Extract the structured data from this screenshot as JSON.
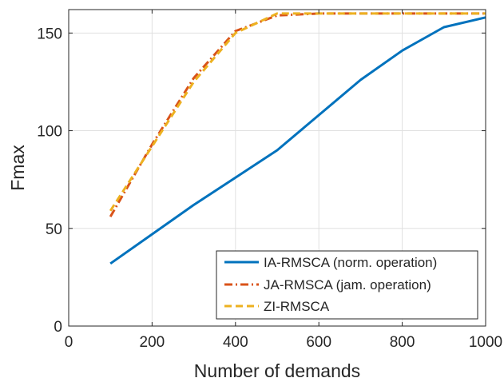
{
  "chart_data": {
    "type": "line",
    "xlabel": "Number of demands",
    "ylabel": "Fmax",
    "xlim": [
      0,
      1000
    ],
    "ylim": [
      0,
      162
    ],
    "xticks": [
      0,
      200,
      400,
      600,
      800,
      1000
    ],
    "yticks": [
      0,
      50,
      100,
      150
    ],
    "xtick_labels": [
      "0",
      "200",
      "400",
      "600",
      "800",
      "1000"
    ],
    "ytick_labels": [
      "0",
      "50",
      "100",
      "150"
    ],
    "grid": true,
    "legend_position": "bottom-right",
    "series": [
      {
        "name": "IA-RMSCA (norm. operation)",
        "color": "#0072BD",
        "style": "solid",
        "x": [
          100,
          200,
          300,
          400,
          500,
          600,
          700,
          800,
          900,
          1000
        ],
        "y": [
          32,
          47,
          62,
          76,
          90,
          108,
          126,
          141,
          153,
          158
        ]
      },
      {
        "name": "JA-RMSCA (jam. operation)",
        "color": "#D95319",
        "style": "dashdot",
        "x": [
          100,
          200,
          300,
          400,
          500,
          600,
          700,
          800,
          900,
          1000
        ],
        "y": [
          56,
          93,
          127,
          151,
          159,
          160,
          160,
          160,
          160,
          160
        ]
      },
      {
        "name": "ZI-RMSCA",
        "color": "#EDB120",
        "style": "dashed",
        "x": [
          100,
          200,
          300,
          400,
          500,
          600,
          700,
          800,
          900,
          1000
        ],
        "y": [
          59,
          92,
          125,
          150,
          160,
          160,
          160,
          160,
          160,
          160
        ]
      }
    ]
  }
}
